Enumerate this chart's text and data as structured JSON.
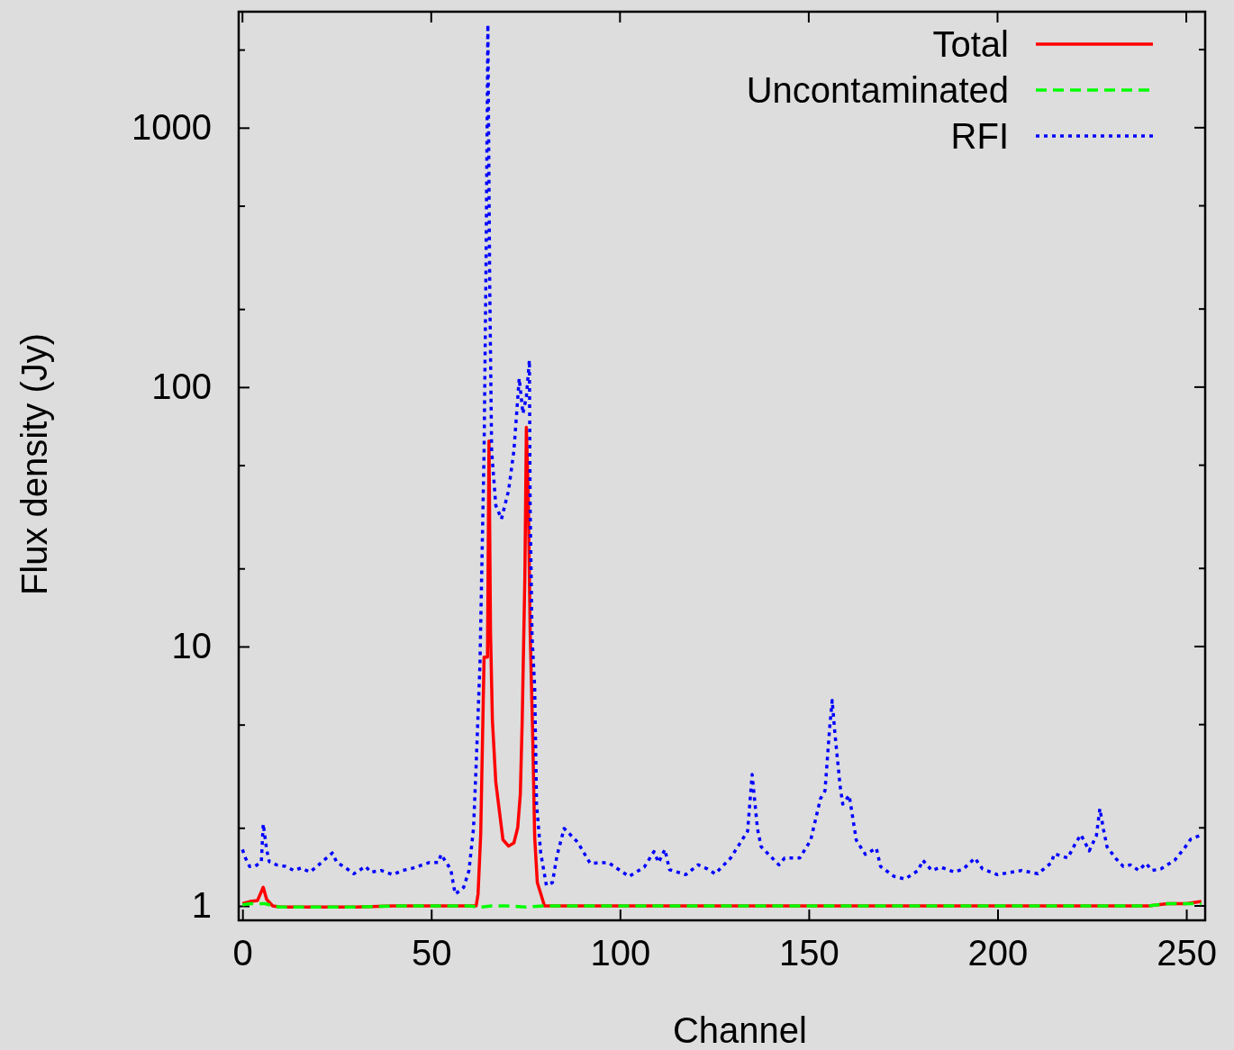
{
  "chart_data": {
    "type": "line",
    "xlabel": "Channel",
    "ylabel": "Flux density (Jy)",
    "log": "y",
    "legend": "top right",
    "grid": false,
    "marker": "none",
    "xlim": [
      -1,
      255
    ],
    "xticks": [
      0,
      50,
      100,
      150,
      200,
      250
    ],
    "ylim": [
      0.88,
      2800
    ],
    "yticks": [
      1,
      {
        "value": 2,
        "label": null
      },
      {
        "value": 5,
        "label": null
      },
      10,
      {
        "value": 20,
        "label": null
      },
      {
        "value": 50,
        "label": null
      },
      100,
      {
        "value": 200,
        "label": null
      },
      {
        "value": 500,
        "label": null
      },
      1000,
      {
        "value": 2000,
        "label": null
      }
    ],
    "series": [
      {
        "name": "Total",
        "color": "#ff0000",
        "line_style": "solid",
        "x": [
          0,
          2,
          4,
          5.5,
          6.4,
          8,
          10,
          20,
          30,
          40,
          50,
          60,
          61.9,
          62.4,
          63.1,
          64,
          64.9,
          65.3,
          65.7,
          66.2,
          67.1,
          69,
          70.5,
          71.9,
          72.9,
          73.6,
          74.1,
          74.8,
          75.2,
          75.7,
          76.2,
          76.9,
          77.4,
          78.1,
          80,
          100,
          150,
          200,
          240,
          245,
          250,
          254
        ],
        "values": [
          1.02,
          1.04,
          1.05,
          1.18,
          1.06,
          1.0,
          0.99,
          0.99,
          0.99,
          1.0,
          1.0,
          1.0,
          1.0,
          1.11,
          1.88,
          9.1,
          9.1,
          62,
          11.5,
          5.2,
          3.0,
          1.8,
          1.7,
          1.75,
          2.0,
          2.7,
          5.2,
          18.6,
          70,
          38,
          11.5,
          4.4,
          1.84,
          1.23,
          1.0,
          1.0,
          1.0,
          1.0,
          1.0,
          1.02,
          1.02,
          1.04
        ]
      },
      {
        "name": "Uncontaminated",
        "color": "#00ff00",
        "line_style": "dashed",
        "x": [
          0,
          2,
          4,
          6,
          8,
          10,
          20,
          30,
          40,
          60,
          63,
          66,
          70,
          75,
          80,
          100,
          150,
          200,
          240,
          245,
          250,
          254
        ],
        "values": [
          1.01,
          1.02,
          1.02,
          1.02,
          1.0,
          0.99,
          0.99,
          0.99,
          1.0,
          1.0,
          0.99,
          1.0,
          1.0,
          0.99,
          1.0,
          1.0,
          1.0,
          1.0,
          1.0,
          1.02,
          1.02,
          1.02
        ]
      },
      {
        "name": "RFI",
        "color": "#0000ff",
        "line_style": "dotted",
        "x": [
          0,
          0.7,
          1.9,
          3.3,
          5,
          5.5,
          6.4,
          7.1,
          9,
          11.4,
          13.6,
          15.5,
          17.9,
          20.2,
          23.8,
          25,
          27.1,
          29.5,
          32.6,
          34,
          36.7,
          39.8,
          42.4,
          45.2,
          49.5,
          51.9,
          52.6,
          55.2,
          56,
          56.4,
          58.6,
          60,
          61.2,
          61.9,
          62.9,
          64,
          64.5,
          65,
          65.5,
          66,
          67.1,
          68.6,
          70.5,
          71.9,
          73.3,
          74.3,
          75.2,
          76,
          76.2,
          76.7,
          77.4,
          77.9,
          79,
          80.5,
          82.1,
          83.3,
          85.2,
          88.8,
          92.1,
          96.9,
          102.4,
          106.4,
          109,
          110.2,
          111.9,
          113.1,
          117.4,
          120.7,
          123.1,
          125.2,
          129.3,
          133.8,
          135,
          136.4,
          137.4,
          142.1,
          143.6,
          147.6,
          150.5,
          153.1,
          154.3,
          155.5,
          156.2,
          156.9,
          158.3,
          159,
          160.7,
          162.6,
          165,
          167.9,
          169,
          172.6,
          175.5,
          179,
          180.2,
          182.6,
          185,
          188.6,
          191,
          194,
          196,
          200,
          206.4,
          210.7,
          214.3,
          215,
          218.6,
          220.7,
          222.1,
          224.3,
          226.2,
          227.1,
          228.1,
          229,
          231.4,
          233.3,
          235.2,
          237.4,
          239.3,
          241,
          243.3,
          246.9,
          249.5,
          251.2,
          254
        ],
        "values": [
          1.65,
          1.54,
          1.42,
          1.42,
          1.48,
          2.07,
          1.65,
          1.48,
          1.44,
          1.42,
          1.37,
          1.4,
          1.35,
          1.44,
          1.6,
          1.47,
          1.41,
          1.33,
          1.42,
          1.35,
          1.37,
          1.32,
          1.37,
          1.4,
          1.47,
          1.47,
          1.58,
          1.38,
          1.18,
          1.11,
          1.18,
          1.37,
          1.99,
          3.5,
          8.5,
          57,
          280,
          2500,
          240,
          57,
          35,
          31,
          40,
          57,
          108,
          79,
          92,
          127,
          35,
          11,
          7.0,
          2.47,
          1.6,
          1.2,
          1.23,
          1.56,
          1.99,
          1.76,
          1.46,
          1.47,
          1.3,
          1.41,
          1.62,
          1.47,
          1.65,
          1.38,
          1.32,
          1.44,
          1.39,
          1.33,
          1.53,
          1.94,
          3.21,
          1.99,
          1.69,
          1.44,
          1.53,
          1.53,
          1.79,
          2.59,
          2.78,
          4.79,
          6.2,
          4.67,
          2.9,
          2.47,
          2.67,
          1.79,
          1.58,
          1.67,
          1.42,
          1.3,
          1.27,
          1.37,
          1.5,
          1.37,
          1.41,
          1.35,
          1.39,
          1.53,
          1.39,
          1.32,
          1.37,
          1.33,
          1.47,
          1.59,
          1.53,
          1.75,
          1.88,
          1.63,
          1.87,
          2.37,
          1.96,
          1.69,
          1.52,
          1.42,
          1.44,
          1.37,
          1.46,
          1.37,
          1.39,
          1.5,
          1.67,
          1.81,
          1.88
        ]
      }
    ]
  }
}
